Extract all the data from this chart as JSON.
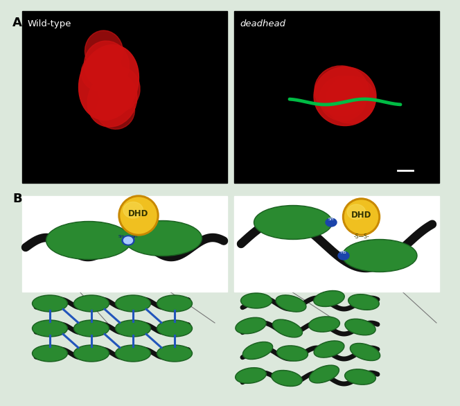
{
  "fig_bg": "#dce8dc",
  "panel_a_bg": "#000000",
  "green_dark": "#1a6020",
  "green_mid": "#2a8a30",
  "green_light": "#3aaa40",
  "black_dna": "#111111",
  "blue_link": "#2255bb",
  "yellow_dhd": "#f0c020",
  "yellow_dhd_dark": "#c88800",
  "white": "#ffffff",
  "red_nucleus": "#cc1111",
  "green_tail": "#00bb44",
  "label_a": "A",
  "label_b": "B",
  "title_left": "Wild-type",
  "title_right": "deadhead",
  "box_edge": "#888888"
}
